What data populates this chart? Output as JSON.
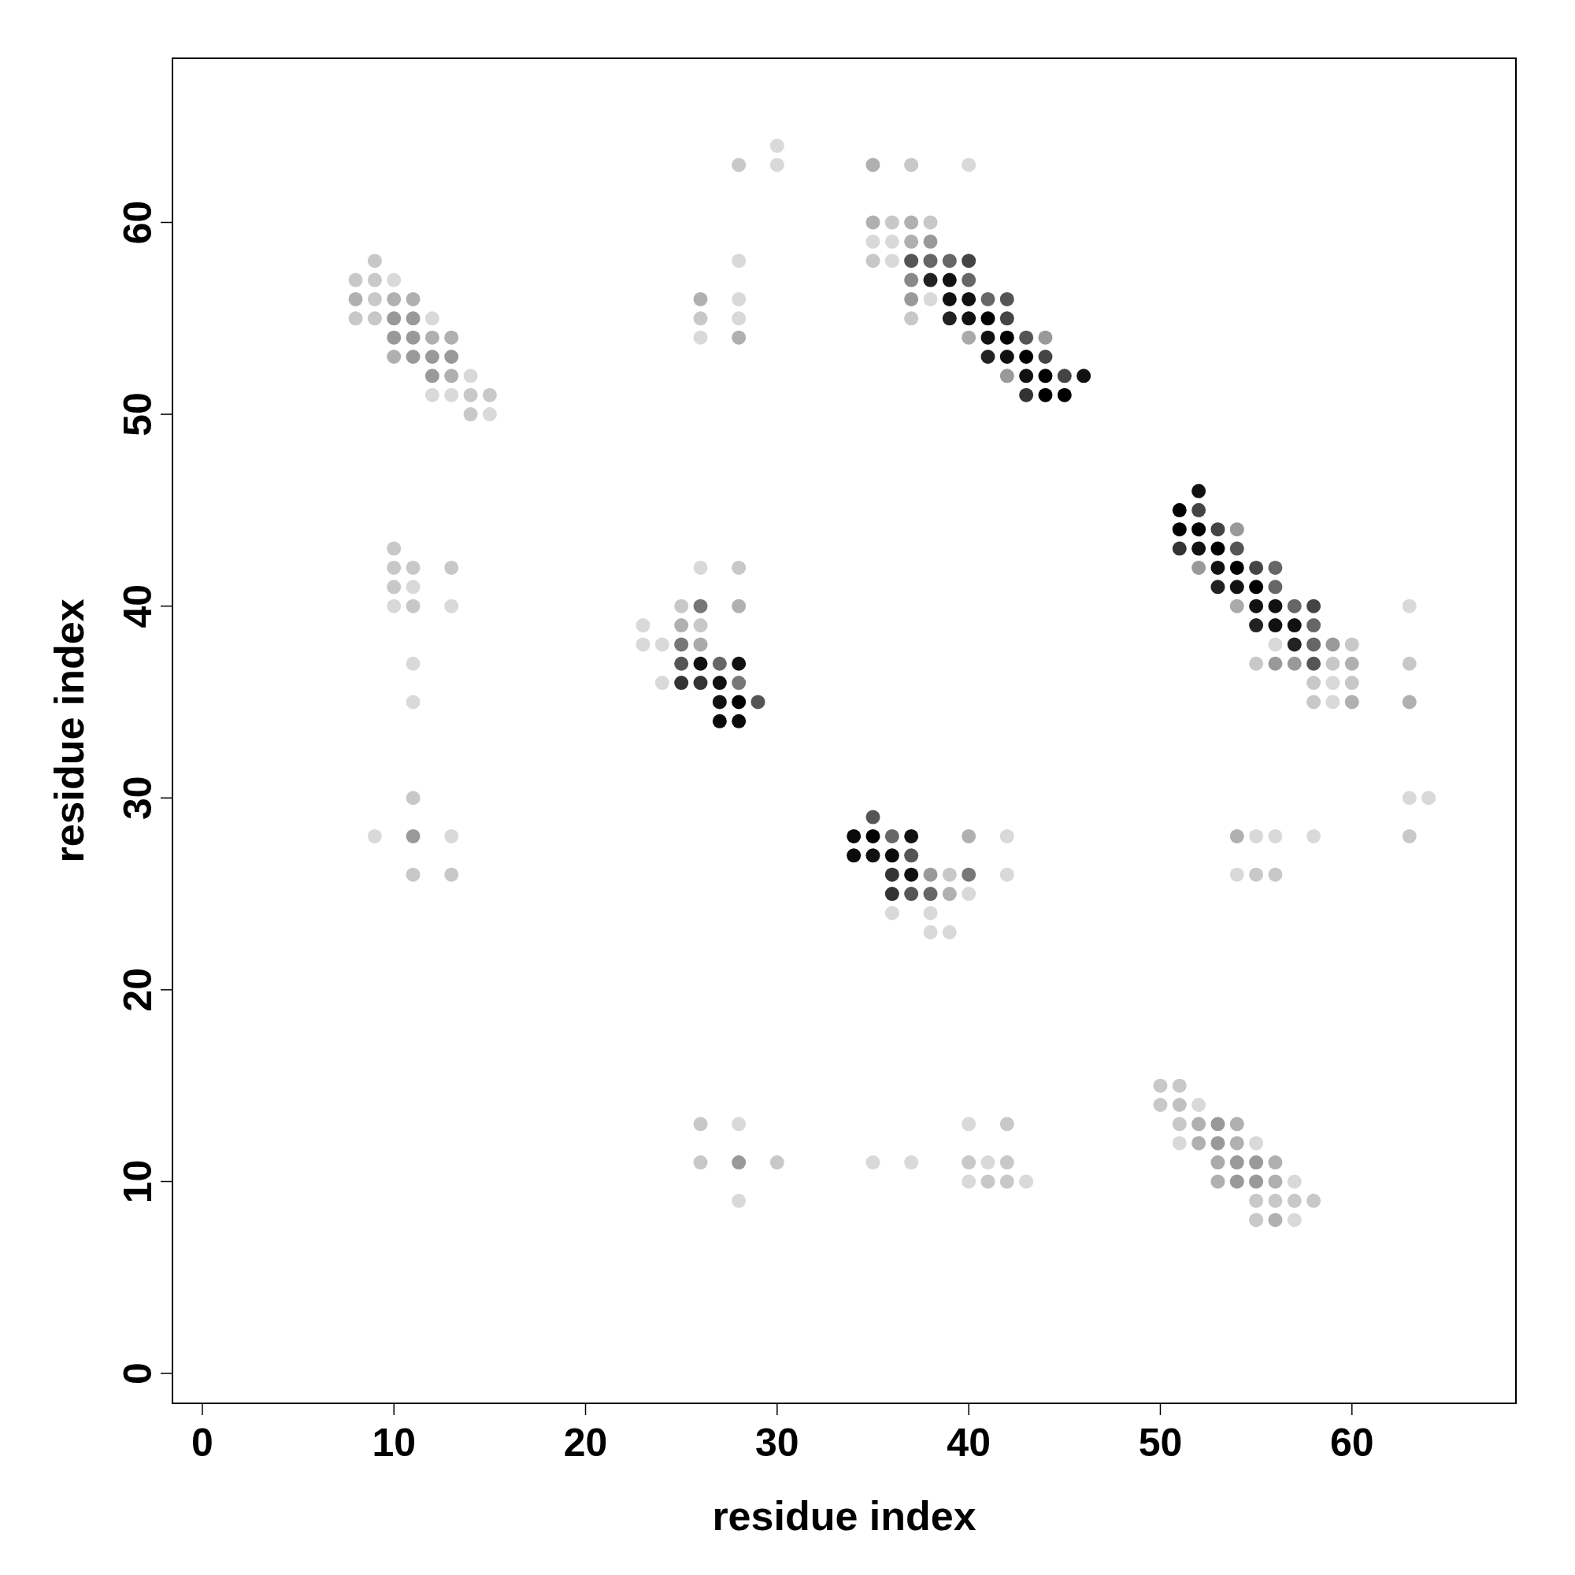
{
  "chart_data": {
    "type": "scatter",
    "xlabel": "residue index",
    "ylabel": "residue index",
    "marker": "circle",
    "xlim": [
      -1.6,
      68.6
    ],
    "ylim": [
      -1.6,
      68.6
    ],
    "xticks": [
      0,
      10,
      20,
      30,
      40,
      50,
      60
    ],
    "yticks": [
      0,
      10,
      20,
      30,
      40,
      50,
      60
    ],
    "x": [
      9,
      8,
      9,
      10,
      8,
      9,
      10,
      11,
      8,
      9,
      10,
      11,
      12,
      10,
      11,
      12,
      13,
      10,
      11,
      12,
      13,
      12,
      13,
      14,
      12,
      13,
      14,
      15,
      14,
      15,
      30,
      28,
      30,
      28,
      26,
      28,
      26,
      28,
      26,
      28,
      35,
      37,
      40,
      35,
      36,
      37,
      38,
      35,
      36,
      37,
      38,
      35,
      36,
      37,
      38,
      39,
      40,
      37,
      38,
      39,
      40,
      37,
      38,
      39,
      40,
      41,
      42,
      37,
      39,
      40,
      41,
      42,
      40,
      41,
      42,
      43,
      44,
      41,
      42,
      43,
      44,
      42,
      43,
      44,
      45,
      46,
      43,
      44,
      45,
      52,
      51,
      52,
      51,
      52,
      53,
      54,
      51,
      52,
      53,
      54,
      52,
      53,
      54,
      55,
      56,
      53,
      54,
      55,
      56,
      54,
      55,
      56,
      57,
      58,
      63,
      55,
      56,
      57,
      58,
      56,
      57,
      58,
      59,
      60,
      55,
      56,
      57,
      58,
      59,
      60,
      63,
      58,
      59,
      60,
      58,
      59,
      60,
      63,
      10,
      10,
      11,
      13,
      10,
      11,
      10,
      11,
      13,
      11,
      11,
      11,
      9,
      11,
      13,
      11,
      13,
      26,
      28,
      25,
      26,
      28,
      23,
      25,
      26,
      23,
      24,
      25,
      26,
      25,
      26,
      27,
      28,
      24,
      25,
      26,
      27,
      28,
      27,
      28,
      29,
      27,
      28,
      35,
      34,
      35,
      36,
      37,
      40,
      42,
      54,
      55,
      56,
      58,
      63,
      34,
      35,
      36,
      37,
      36,
      37,
      38,
      39,
      40,
      42,
      54,
      55,
      56,
      36,
      37,
      38,
      39,
      40,
      36,
      38,
      38,
      39,
      63,
      64,
      50,
      51,
      50,
      51,
      52,
      26,
      28,
      40,
      42,
      51,
      52,
      53,
      54,
      51,
      52,
      53,
      54,
      55,
      26,
      28,
      30,
      35,
      37,
      40,
      41,
      42,
      53,
      54,
      55,
      56,
      40,
      41,
      42,
      43,
      53,
      54,
      55,
      56,
      57,
      28,
      55,
      56,
      57,
      58,
      55,
      56,
      57
    ],
    "values": [
      58,
      57,
      57,
      57,
      56,
      56,
      56,
      56,
      55,
      55,
      55,
      55,
      55,
      54,
      54,
      54,
      54,
      53,
      53,
      53,
      53,
      52,
      52,
      52,
      51,
      51,
      51,
      51,
      50,
      50,
      64,
      63,
      63,
      58,
      56,
      56,
      55,
      55,
      54,
      54,
      63,
      63,
      63,
      60,
      60,
      60,
      60,
      59,
      59,
      59,
      59,
      58,
      58,
      58,
      58,
      58,
      58,
      57,
      57,
      57,
      57,
      56,
      56,
      56,
      56,
      56,
      56,
      55,
      55,
      55,
      55,
      55,
      54,
      54,
      54,
      54,
      54,
      53,
      53,
      53,
      53,
      52,
      52,
      52,
      52,
      52,
      51,
      51,
      51,
      46,
      45,
      45,
      44,
      44,
      44,
      44,
      43,
      43,
      43,
      43,
      42,
      42,
      42,
      42,
      42,
      41,
      41,
      41,
      41,
      40,
      40,
      40,
      40,
      40,
      40,
      39,
      39,
      39,
      39,
      38,
      38,
      38,
      38,
      38,
      37,
      37,
      37,
      37,
      37,
      37,
      37,
      36,
      36,
      36,
      35,
      35,
      35,
      35,
      43,
      42,
      42,
      42,
      41,
      41,
      40,
      40,
      40,
      37,
      35,
      30,
      28,
      28,
      28,
      26,
      26,
      42,
      42,
      40,
      40,
      40,
      39,
      39,
      39,
      38,
      38,
      38,
      38,
      37,
      37,
      37,
      37,
      36,
      36,
      36,
      36,
      36,
      35,
      35,
      35,
      34,
      34,
      29,
      28,
      28,
      28,
      28,
      28,
      28,
      28,
      28,
      28,
      28,
      28,
      27,
      27,
      27,
      27,
      26,
      26,
      26,
      26,
      26,
      26,
      26,
      26,
      26,
      25,
      25,
      25,
      25,
      25,
      24,
      24,
      23,
      23,
      30,
      30,
      15,
      15,
      14,
      14,
      14,
      13,
      13,
      13,
      13,
      13,
      13,
      13,
      13,
      12,
      12,
      12,
      12,
      12,
      11,
      11,
      11,
      11,
      11,
      11,
      11,
      11,
      11,
      11,
      11,
      11,
      10,
      10,
      10,
      10,
      10,
      10,
      10,
      10,
      10,
      9,
      9,
      9,
      9,
      9,
      8,
      8,
      8
    ],
    "colors": [
      "#c8c8c8",
      "#c8c8c8",
      "#c8c8c8",
      "#d9d9d9",
      "#b0b0b0",
      "#c8c8c8",
      "#b0b0b0",
      "#b0b0b0",
      "#c8c8c8",
      "#c8c8c8",
      "#999999",
      "#999999",
      "#d9d9d9",
      "#999999",
      "#999999",
      "#b0b0b0",
      "#b0b0b0",
      "#b0b0b0",
      "#999999",
      "#999999",
      "#999999",
      "#999999",
      "#b0b0b0",
      "#d9d9d9",
      "#d9d9d9",
      "#d9d9d9",
      "#c8c8c8",
      "#c8c8c8",
      "#c8c8c8",
      "#d9d9d9",
      "#d9d9d9",
      "#c8c8c8",
      "#d9d9d9",
      "#d9d9d9",
      "#b0b0b0",
      "#d9d9d9",
      "#c8c8c8",
      "#d9d9d9",
      "#d9d9d9",
      "#b0b0b0",
      "#b0b0b0",
      "#c8c8c8",
      "#d9d9d9",
      "#b0b0b0",
      "#c8c8c8",
      "#b0b0b0",
      "#c8c8c8",
      "#d9d9d9",
      "#d9d9d9",
      "#b0b0b0",
      "#999999",
      "#c8c8c8",
      "#d9d9d9",
      "#555555",
      "#666666",
      "#666666",
      "#444444",
      "#888888",
      "#222222",
      "#111111",
      "#666666",
      "#999999",
      "#d9d9d9",
      "#111111",
      "#111111",
      "#666666",
      "#555555",
      "#c8c8c8",
      "#222222",
      "#111111",
      "#000000",
      "#444444",
      "#aaaaaa",
      "#111111",
      "#000000",
      "#555555",
      "#999999",
      "#222222",
      "#111111",
      "#000000",
      "#444444",
      "#999999",
      "#111111",
      "#000000",
      "#444444",
      "#111111",
      "#333333",
      "#000000",
      "#000000",
      "#111111",
      "#000000",
      "#444444",
      "#000000",
      "#000000",
      "#444444",
      "#999999",
      "#333333",
      "#111111",
      "#000000",
      "#555555",
      "#999999",
      "#111111",
      "#000000",
      "#444444",
      "#666666",
      "#222222",
      "#111111",
      "#000000",
      "#666666",
      "#aaaaaa",
      "#111111",
      "#111111",
      "#666666",
      "#444444",
      "#d9d9d9",
      "#222222",
      "#111111",
      "#111111",
      "#666666",
      "#d9d9d9",
      "#222222",
      "#666666",
      "#999999",
      "#c8c8c8",
      "#c8c8c8",
      "#999999",
      "#999999",
      "#555555",
      "#c8c8c8",
      "#b0b0b0",
      "#c8c8c8",
      "#c8c8c8",
      "#d9d9d9",
      "#c8c8c8",
      "#c8c8c8",
      "#d9d9d9",
      "#b0b0b0",
      "#b0b0b0",
      "#c8c8c8",
      "#c8c8c8",
      "#c8c8c8",
      "#c8c8c8",
      "#c8c8c8",
      "#d9d9d9",
      "#d9d9d9",
      "#c8c8c8",
      "#d9d9d9",
      "#d9d9d9",
      "#d9d9d9",
      "#c8c8c8",
      "#d9d9d9",
      "#999999",
      "#d9d9d9",
      "#c8c8c8",
      "#c8c8c8",
      "#d9d9d9",
      "#c8c8c8",
      "#c8c8c8",
      "#777777",
      "#b0b0b0",
      "#d9d9d9",
      "#b0b0b0",
      "#c8c8c8",
      "#d9d9d9",
      "#d9d9d9",
      "#777777",
      "#aaaaaa",
      "#555555",
      "#111111",
      "#666666",
      "#111111",
      "#d9d9d9",
      "#333333",
      "#333333",
      "#111111",
      "#777777",
      "#111111",
      "#000000",
      "#555555",
      "#0a0a0a",
      "#0a0a0a",
      "#555555",
      "#0a0a0a",
      "#000000",
      "#666666",
      "#111111",
      "#b0b0b0",
      "#d9d9d9",
      "#b0b0b0",
      "#d9d9d9",
      "#d9d9d9",
      "#d9d9d9",
      "#c8c8c8",
      "#0a0a0a",
      "#111111",
      "#0a0a0a",
      "#555555",
      "#333333",
      "#111111",
      "#999999",
      "#c8c8c8",
      "#777777",
      "#d9d9d9",
      "#d9d9d9",
      "#c8c8c8",
      "#c8c8c8",
      "#333333",
      "#555555",
      "#666666",
      "#b0b0b0",
      "#d9d9d9",
      "#d9d9d9",
      "#d9d9d9",
      "#d9d9d9",
      "#d9d9d9",
      "#d9d9d9",
      "#d9d9d9",
      "#c8c8c8",
      "#c8c8c8",
      "#c8c8c8",
      "#c0c0c0",
      "#d9d9d9",
      "#c8c8c8",
      "#d9d9d9",
      "#d9d9d9",
      "#c8c8c8",
      "#c8c8c8",
      "#b0b0b0",
      "#999999",
      "#b0b0b0",
      "#d9d9d9",
      "#b0b0b0",
      "#999999",
      "#b0b0b0",
      "#d9d9d9",
      "#c8c8c8",
      "#999999",
      "#c8c8c8",
      "#d9d9d9",
      "#d9d9d9",
      "#c8c8c8",
      "#d9d9d9",
      "#c8c8c8",
      "#aaaaaa",
      "#999999",
      "#999999",
      "#b0b0b0",
      "#d9d9d9",
      "#c8c8c8",
      "#c8c8c8",
      "#d9d9d9",
      "#b0b0b0",
      "#999999",
      "#999999",
      "#b0b0b0",
      "#d9d9d9",
      "#d9d9d9",
      "#c8c8c8",
      "#c8c8c8",
      "#c8c8c8",
      "#c8c8c8",
      "#c8c8c8",
      "#b0b0b0",
      "#d9d9d9"
    ]
  }
}
